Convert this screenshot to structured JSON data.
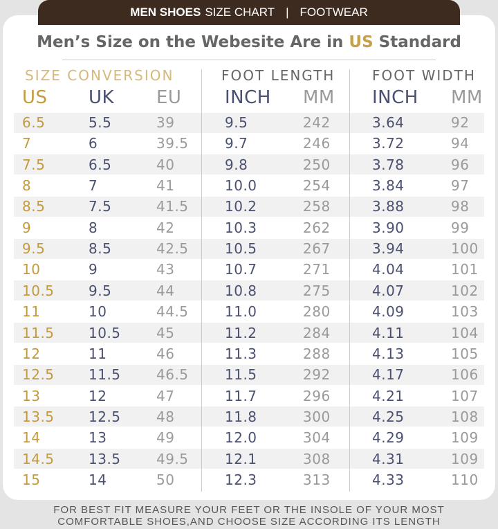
{
  "header": {
    "title_bold": "MEN SHOES",
    "title": "SIZE CHART",
    "section": "FOOTWEAR"
  },
  "subtitle": {
    "before": "Men’s Size on the Webesite Are in",
    "highlight": "US",
    "after": "Standard"
  },
  "groups": [
    "SIZE CONVERSION",
    "FOOT LENGTH",
    "FOOT WIDTH"
  ],
  "table": {
    "columns": [
      "US",
      "UK",
      "EU",
      "INCH",
      "MM",
      "INCH",
      "MM"
    ],
    "rows": [
      [
        "6.5",
        "5.5",
        "39",
        "9.5",
        "242",
        "3.64",
        "92"
      ],
      [
        "7",
        "6",
        "39.5",
        "9.7",
        "246",
        "3.72",
        "94"
      ],
      [
        "7.5",
        "6.5",
        "40",
        "9.8",
        "250",
        "3.78",
        "96"
      ],
      [
        "8",
        "7",
        "41",
        "10.0",
        "254",
        "3.84",
        "97"
      ],
      [
        "8.5",
        "7.5",
        "41.5",
        "10.2",
        "258",
        "3.88",
        "98"
      ],
      [
        "9",
        "8",
        "42",
        "10.3",
        "262",
        "3.90",
        "99"
      ],
      [
        "9.5",
        "8.5",
        "42.5",
        "10.5",
        "267",
        "3.94",
        "100"
      ],
      [
        "10",
        "9",
        "43",
        "10.7",
        "271",
        "4.04",
        "101"
      ],
      [
        "10.5",
        "9.5",
        "44",
        "10.8",
        "275",
        "4.07",
        "102"
      ],
      [
        "11",
        "10",
        "44.5",
        "11.0",
        "280",
        "4.09",
        "103"
      ],
      [
        "11.5",
        "10.5",
        "45",
        "11.2",
        "284",
        "4.11",
        "104"
      ],
      [
        "12",
        "11",
        "46",
        "11.3",
        "288",
        "4.13",
        "105"
      ],
      [
        "12.5",
        "11.5",
        "46.5",
        "11.5",
        "292",
        "4.17",
        "106"
      ],
      [
        "13",
        "12",
        "47",
        "11.7",
        "296",
        "4.21",
        "107"
      ],
      [
        "13.5",
        "12.5",
        "48",
        "11.8",
        "300",
        "4.25",
        "108"
      ],
      [
        "14",
        "13",
        "49",
        "12.0",
        "304",
        "4.29",
        "109"
      ],
      [
        "14.5",
        "13.5",
        "49.5",
        "12.1",
        "308",
        "4.31",
        "109"
      ],
      [
        "15",
        "14",
        "50",
        "12.3",
        "313",
        "4.33",
        "110"
      ]
    ]
  },
  "footer": [
    "FOR BEST FIT MEASURE YOUR FEET OR THE INSOLE OF YOUR MOST",
    "COMFORTABLE SHOES,AND CHOOSE SIZE ACCORDING ITS LENGTH"
  ]
}
